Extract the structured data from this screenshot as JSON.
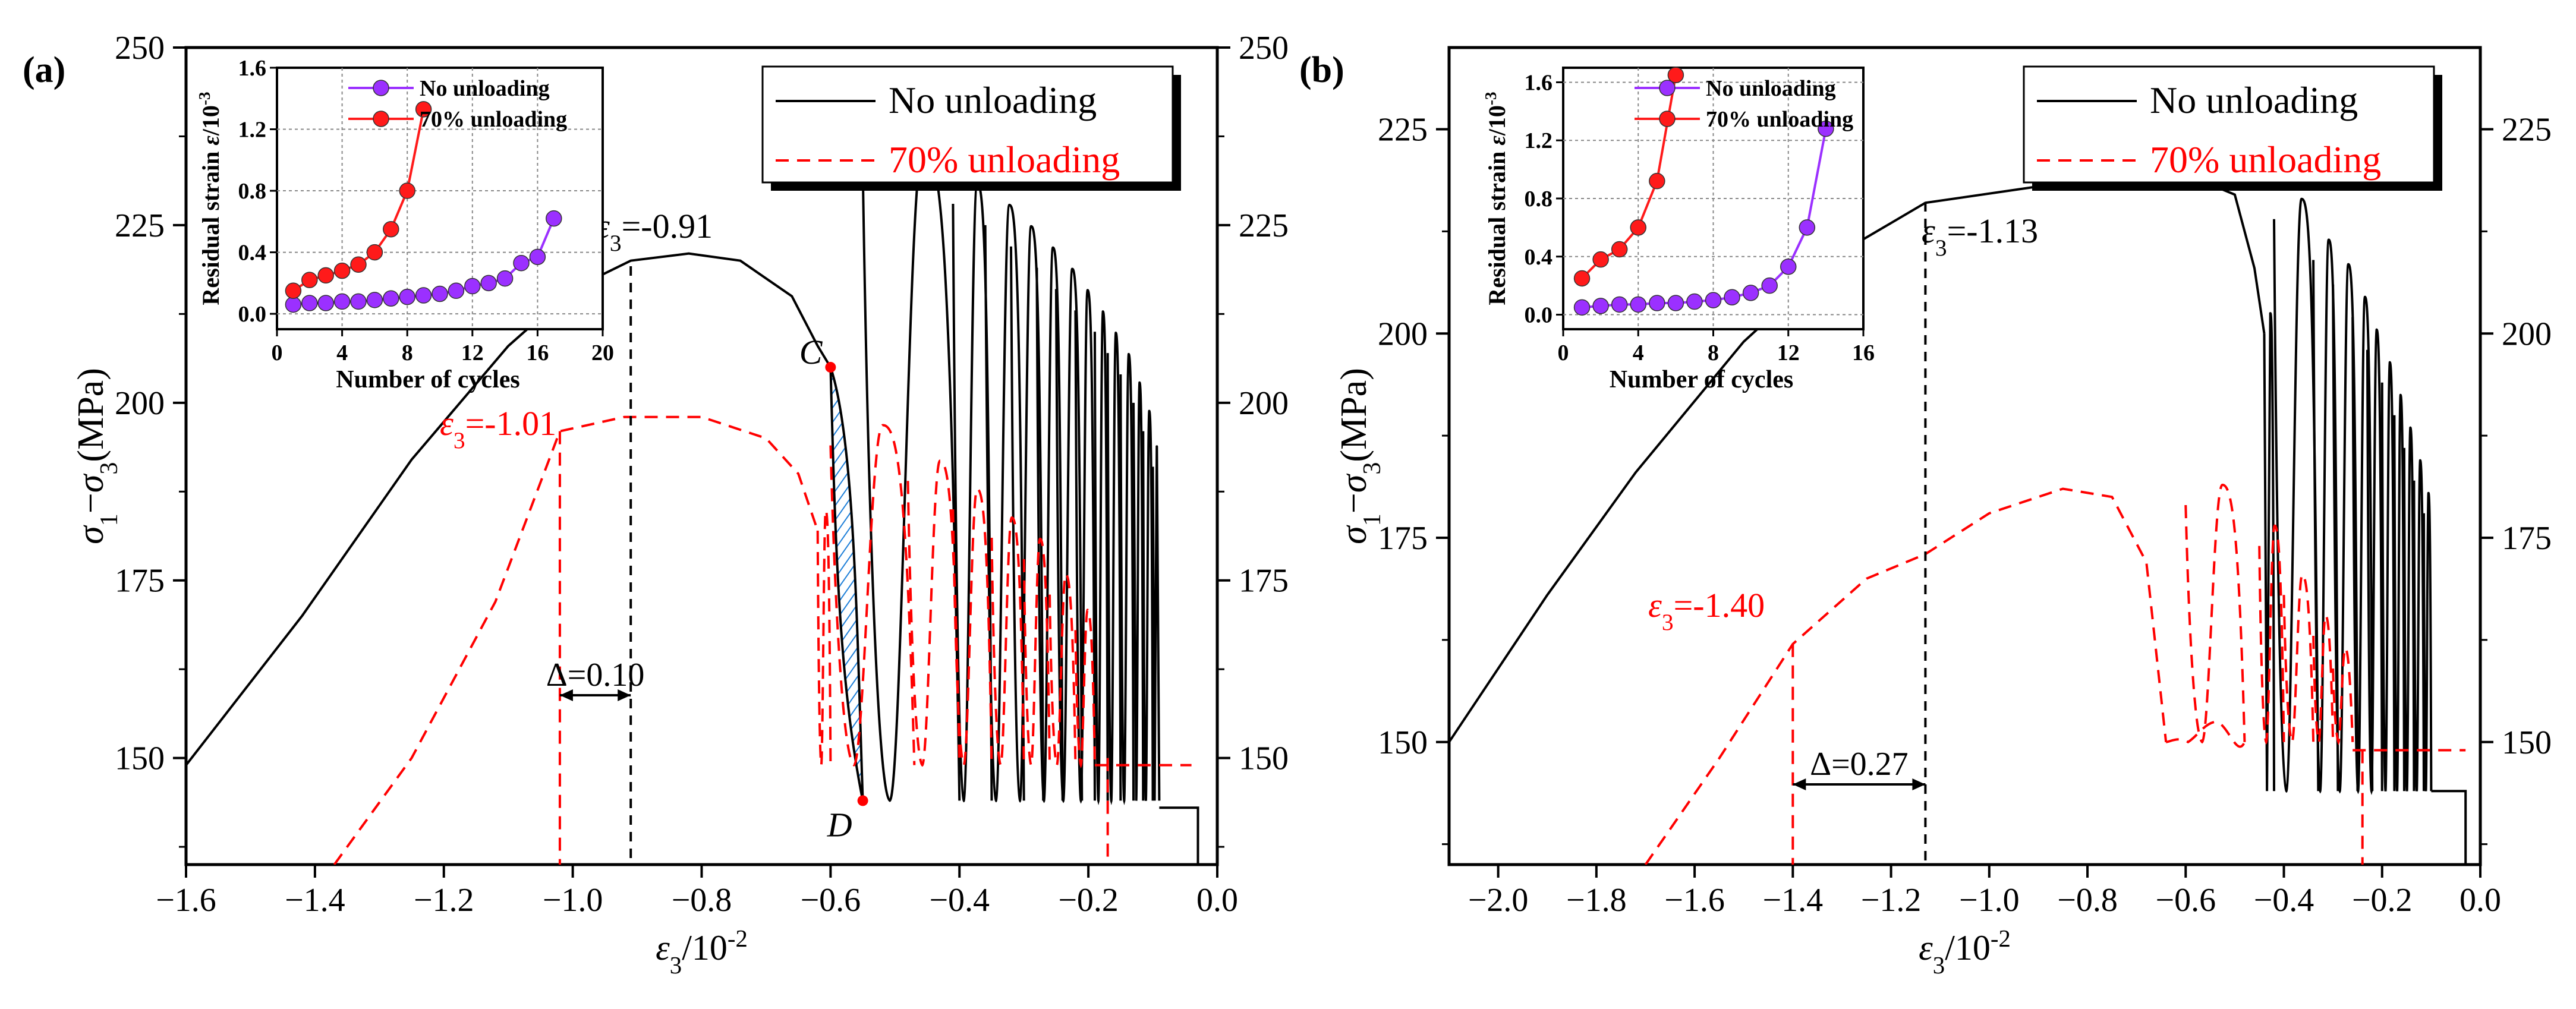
{
  "colors": {
    "no_unloading": "#000000",
    "unloading": "#ff0000",
    "inset_purple": "#9b30ff",
    "inset_red": "#ff1a1a",
    "hatch": "#1e7fd8"
  },
  "chart_data": [
    {
      "panel_label": "(a)",
      "type": "line",
      "xlabel": "ε3/10-2",
      "ylabel": "σ1−σ3(MPa)",
      "xlim": [
        -1.6,
        0.0
      ],
      "ylim": [
        135,
        250
      ],
      "xticks": [
        "-1.6",
        "-1.4",
        "-1.2",
        "-1.0",
        "-0.8",
        "-0.6",
        "-0.4",
        "-0.2",
        "0.0"
      ],
      "yticks": [
        "150",
        "175",
        "200",
        "225",
        "250"
      ],
      "legend": [
        "No unloading",
        "70% unloading"
      ],
      "series": [
        {
          "name": "No unloading",
          "prepeak": [
            [
              -1.6,
              149
            ],
            [
              -1.42,
              170
            ],
            [
              -1.25,
              192
            ],
            [
              -1.1,
              208
            ],
            [
              -1.0,
              216
            ],
            [
              -0.91,
              220
            ],
            [
              -0.82,
              221
            ],
            [
              -0.74,
              220
            ],
            [
              -0.66,
              215
            ],
            [
              -0.62,
              208
            ],
            [
              -0.6,
              205
            ]
          ],
          "loops": [
            {
              "x0": -0.6,
              "xr": -0.55,
              "y0": 205,
              "ymin": 144
            },
            {
              "x0": -0.55,
              "xr": -0.4,
              "y0": 233,
              "ymin": 144
            },
            {
              "x0": -0.41,
              "xr": -0.35,
              "y0": 228,
              "ymin": 144
            },
            {
              "x0": -0.36,
              "xr": -0.3,
              "y0": 225,
              "ymin": 144
            },
            {
              "x0": -0.32,
              "xr": -0.27,
              "y0": 222,
              "ymin": 144
            },
            {
              "x0": -0.28,
              "xr": -0.24,
              "y0": 219,
              "ymin": 144
            },
            {
              "x0": -0.25,
              "xr": -0.21,
              "y0": 216,
              "ymin": 144
            },
            {
              "x0": -0.22,
              "xr": -0.19,
              "y0": 213,
              "ymin": 144
            },
            {
              "x0": -0.19,
              "xr": -0.17,
              "y0": 210,
              "ymin": 144
            },
            {
              "x0": -0.17,
              "xr": -0.15,
              "y0": 207,
              "ymin": 144
            },
            {
              "x0": -0.15,
              "xr": -0.13,
              "y0": 204,
              "ymin": 144
            },
            {
              "x0": -0.13,
              "xr": -0.115,
              "y0": 200,
              "ymin": 144
            },
            {
              "x0": -0.115,
              "xr": -0.1,
              "y0": 196,
              "ymin": 144
            },
            {
              "x0": -0.1,
              "xr": -0.09,
              "y0": 191,
              "ymin": 144
            }
          ],
          "tail": [
            [
              -0.09,
              143
            ],
            [
              -0.03,
              143
            ]
          ]
        },
        {
          "name": "70% unloading",
          "prepeak": [
            [
              -1.37,
              135
            ],
            [
              -1.25,
              150
            ],
            [
              -1.12,
              172
            ],
            [
              -1.02,
              196
            ],
            [
              -0.92,
              198
            ],
            [
              -0.8,
              198
            ],
            [
              -0.7,
              195
            ],
            [
              -0.65,
              190
            ],
            [
              -0.62,
              182
            ]
          ],
          "loops": [
            {
              "x0": -0.62,
              "xr": -0.6,
              "y0": 182,
              "ymin": 149
            },
            {
              "x0": -0.6,
              "xr": -0.47,
              "y0": 194,
              "ymin": 149
            },
            {
              "x0": -0.48,
              "xr": -0.4,
              "y0": 189,
              "ymin": 149
            },
            {
              "x0": -0.41,
              "xr": -0.35,
              "y0": 185,
              "ymin": 149
            },
            {
              "x0": -0.35,
              "xr": -0.3,
              "y0": 181,
              "ymin": 149
            },
            {
              "x0": -0.3,
              "xr": -0.26,
              "y0": 178,
              "ymin": 149
            },
            {
              "x0": -0.26,
              "xr": -0.22,
              "y0": 173,
              "ymin": 149
            },
            {
              "x0": -0.22,
              "xr": -0.19,
              "y0": 168,
              "ymin": 149
            }
          ],
          "tail": [
            [
              -0.19,
              149
            ],
            [
              -0.04,
              149
            ]
          ],
          "drops": [
            [
              -1.02,
              196,
              -1.02,
              135
            ],
            [
              -0.17,
              150,
              -0.17,
              135
            ]
          ]
        }
      ],
      "annotations": [
        {
          "id": "eps-black",
          "text": "ε3=-0.91",
          "x": -0.91
        },
        {
          "id": "eps-red",
          "text": "ε3=-1.01",
          "x": -1.02
        },
        {
          "id": "delta",
          "text": "Δ=0.10"
        },
        {
          "id": "point-c",
          "text": "C",
          "x": -0.6,
          "y": 205
        },
        {
          "id": "point-d",
          "text": "D",
          "x": -0.55,
          "y": 144
        }
      ],
      "inset": {
        "type": "line",
        "xlabel": "Number of cycles",
        "ylabel": "Residual strain ε/10-3",
        "xlim": [
          0,
          20
        ],
        "ylim": [
          -0.1,
          1.6
        ],
        "xticks": [
          "0",
          "4",
          "8",
          "12",
          "16",
          "20"
        ],
        "yticks": [
          "0.0",
          "0.4",
          "0.8",
          "1.2",
          "1.6"
        ],
        "legend": [
          "No unloading",
          "70% unloading"
        ],
        "series": [
          {
            "name": "No unloading",
            "x": [
              1,
              2,
              3,
              4,
              5,
              6,
              7,
              8,
              9,
              10,
              11,
              12,
              13,
              14,
              15,
              16,
              17
            ],
            "values": [
              0.06,
              0.07,
              0.07,
              0.08,
              0.08,
              0.09,
              0.1,
              0.11,
              0.12,
              0.13,
              0.15,
              0.18,
              0.2,
              0.23,
              0.33,
              0.37,
              0.62
            ]
          },
          {
            "name": "70% unloading",
            "x": [
              1,
              2,
              3,
              4,
              5,
              6,
              7,
              8,
              9
            ],
            "values": [
              0.15,
              0.22,
              0.25,
              0.28,
              0.32,
              0.4,
              0.55,
              0.8,
              1.33
            ]
          }
        ]
      }
    },
    {
      "panel_label": "(b)",
      "type": "line",
      "xlabel": "ε3/10-2",
      "ylabel": "σ1−σ3(MPa)",
      "xlim": [
        -2.1,
        0.0
      ],
      "ylim": [
        135,
        235
      ],
      "xticks": [
        "-2.0",
        "-1.8",
        "-1.6",
        "-1.4",
        "-1.2",
        "-1.0",
        "-0.8",
        "-0.6",
        "-0.4",
        "-0.2",
        "0.0"
      ],
      "yticks": [
        "150",
        "175",
        "200",
        "225"
      ],
      "legend": [
        "No unloading",
        "70% unloading"
      ],
      "series": [
        {
          "name": "No unloading",
          "prepeak": [
            [
              -2.1,
              150
            ],
            [
              -1.9,
              168
            ],
            [
              -1.72,
              183
            ],
            [
              -1.5,
              199
            ],
            [
              -1.3,
              210
            ],
            [
              -1.13,
              216
            ],
            [
              -0.9,
              218
            ],
            [
              -0.7,
              219
            ],
            [
              -0.58,
              219
            ],
            [
              -0.5,
              217
            ],
            [
              -0.46,
              208
            ],
            [
              -0.44,
              200
            ]
          ],
          "loops": [
            {
              "x0": -0.44,
              "xr": -0.42,
              "y0": 200,
              "ymin": 144
            },
            {
              "x0": -0.42,
              "xr": -0.33,
              "y0": 214,
              "ymin": 144
            },
            {
              "x0": -0.34,
              "xr": -0.29,
              "y0": 209,
              "ymin": 144
            },
            {
              "x0": -0.3,
              "xr": -0.25,
              "y0": 206,
              "ymin": 144
            },
            {
              "x0": -0.26,
              "xr": -0.22,
              "y0": 202,
              "ymin": 144
            },
            {
              "x0": -0.23,
              "xr": -0.2,
              "y0": 198,
              "ymin": 144
            },
            {
              "x0": -0.2,
              "xr": -0.175,
              "y0": 194,
              "ymin": 144
            },
            {
              "x0": -0.175,
              "xr": -0.155,
              "y0": 190,
              "ymin": 144
            },
            {
              "x0": -0.155,
              "xr": -0.135,
              "y0": 186,
              "ymin": 144
            },
            {
              "x0": -0.135,
              "xr": -0.115,
              "y0": 182,
              "ymin": 144
            },
            {
              "x0": -0.115,
              "xr": -0.1,
              "y0": 178,
              "ymin": 144
            }
          ],
          "tail": [
            [
              -0.1,
              144
            ],
            [
              -0.03,
              144
            ]
          ]
        },
        {
          "name": "70% unloading",
          "prepeak": [
            [
              -1.7,
              135
            ],
            [
              -1.55,
              148
            ],
            [
              -1.4,
              162
            ],
            [
              -1.25,
              170
            ],
            [
              -1.13,
              173
            ],
            [
              -1.0,
              178
            ],
            [
              -0.85,
              181
            ],
            [
              -0.75,
              180
            ],
            [
              -0.68,
              172
            ],
            [
              -0.64,
              150
            ]
          ],
          "loops": [
            {
              "x0": -0.64,
              "xr": -0.48,
              "y0": 150,
              "ymin": 150
            },
            {
              "x0": -0.6,
              "xr": -0.48,
              "y0": 179,
              "ymin": 150
            },
            {
              "x0": -0.45,
              "xr": -0.4,
              "y0": 174,
              "ymin": 150
            },
            {
              "x0": -0.4,
              "xr": -0.34,
              "y0": 168,
              "ymin": 150
            },
            {
              "x0": -0.34,
              "xr": -0.3,
              "y0": 163,
              "ymin": 150
            },
            {
              "x0": -0.3,
              "xr": -0.26,
              "y0": 159,
              "ymin": 150
            }
          ],
          "tail": [
            [
              -0.26,
              149
            ],
            [
              -0.03,
              149
            ]
          ],
          "drops": [
            [
              -1.4,
              162,
              -1.4,
              135
            ],
            [
              -0.24,
              149,
              -0.24,
              135
            ]
          ]
        }
      ],
      "annotations": [
        {
          "id": "eps-black",
          "text": "ε3=-1.13",
          "x": -1.13
        },
        {
          "id": "eps-red",
          "text": "ε3=-1.40",
          "x": -1.4
        },
        {
          "id": "delta",
          "text": "Δ=0.27"
        }
      ],
      "inset": {
        "type": "line",
        "xlabel": "Number of cycles",
        "ylabel": "Residual strain ε/10-3",
        "xlim": [
          0,
          16
        ],
        "ylim": [
          -0.1,
          1.7
        ],
        "xticks": [
          "0",
          "4",
          "8",
          "12",
          "16"
        ],
        "yticks": [
          "0.0",
          "0.4",
          "0.8",
          "1.2",
          "1.6"
        ],
        "legend": [
          "No unloading",
          "70% unloading"
        ],
        "series": [
          {
            "name": "No unloading",
            "x": [
              1,
              2,
              3,
              4,
              5,
              6,
              7,
              8,
              9,
              10,
              11,
              12,
              13,
              14
            ],
            "values": [
              0.05,
              0.06,
              0.07,
              0.07,
              0.08,
              0.08,
              0.09,
              0.1,
              0.12,
              0.15,
              0.2,
              0.33,
              0.6,
              1.28
            ]
          },
          {
            "name": "70% unloading",
            "x": [
              1,
              2,
              3,
              4,
              5,
              6
            ],
            "values": [
              0.25,
              0.38,
              0.45,
              0.6,
              0.92,
              1.65
            ]
          }
        ]
      }
    }
  ]
}
